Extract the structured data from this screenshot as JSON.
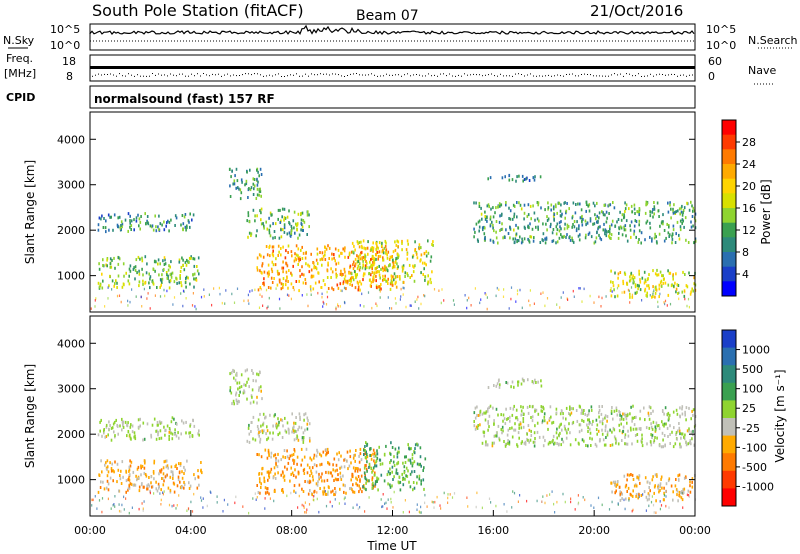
{
  "header": {
    "station": "South Pole Station (fitACF)",
    "beam": "Beam 07",
    "date": "21/Oct/2016"
  },
  "top_panels": {
    "nsky_label": "N.Sky",
    "nsky_ticks": [
      "10^5",
      "10^0"
    ],
    "nsearch_label": "N.Search",
    "nsearch_ticks": [
      "10^5",
      "10^0"
    ],
    "freq_label": "Freq.",
    "freq_unit": "[MHz]",
    "freq_ticks": [
      "18",
      "8"
    ],
    "nave_label": "Nave",
    "nave_ticks": [
      "60",
      "0"
    ],
    "cpid_label": "CPID",
    "cpid_text": "normalsound (fast) 157 RF"
  },
  "chart_data": [
    {
      "type": "heatmap",
      "name": "power",
      "ylabel": "Slant Range [km]",
      "xlabel": "",
      "ylim": [
        200,
        4600
      ],
      "xlim": [
        0,
        24
      ],
      "yticks": [
        "4000",
        "3000",
        "2000",
        "1000"
      ],
      "colorbar": {
        "label": "Power [dB]",
        "ticks": [
          "28",
          "24",
          "20",
          "16",
          "12",
          "8",
          "4"
        ],
        "colors": [
          "#ff0000",
          "#ff3a00",
          "#ff7a00",
          "#ffaa00",
          "#ffd400",
          "#d8e000",
          "#8fd430",
          "#3aa050",
          "#2d8a7a",
          "#2a6fb0",
          "#1a3fc8",
          "#0000ff"
        ]
      },
      "blobs": [
        {
          "t0": 0.3,
          "t1": 4.1,
          "r0": 2000,
          "r1": 2400,
          "level": 5
        },
        {
          "t0": 0.3,
          "t1": 4.3,
          "r0": 750,
          "r1": 1450,
          "level": 8
        },
        {
          "t0": 5.5,
          "t1": 6.8,
          "r0": 2700,
          "r1": 3400,
          "level": 6
        },
        {
          "t0": 6.2,
          "t1": 8.7,
          "r0": 1850,
          "r1": 2500,
          "level": 7
        },
        {
          "t0": 6.6,
          "t1": 12.2,
          "r0": 700,
          "r1": 1700,
          "level": 13
        },
        {
          "t0": 10.3,
          "t1": 13.6,
          "r0": 850,
          "r1": 1800,
          "level": 10
        },
        {
          "t0": 15.7,
          "t1": 17.9,
          "r0": 3100,
          "r1": 3250,
          "level": 4
        },
        {
          "t0": 15.2,
          "t1": 24.0,
          "r0": 1750,
          "r1": 2650,
          "level": 6
        },
        {
          "t0": 20.6,
          "t1": 24.0,
          "r0": 550,
          "r1": 1150,
          "level": 10
        }
      ]
    },
    {
      "type": "heatmap",
      "name": "velocity",
      "ylabel": "Slant Range [km]",
      "xlabel": "Time UT",
      "ylim": [
        200,
        4600
      ],
      "xlim": [
        0,
        24
      ],
      "yticks": [
        "4000",
        "3000",
        "2000",
        "1000"
      ],
      "xticks": [
        "00:00",
        "04:00",
        "08:00",
        "12:00",
        "16:00",
        "20:00",
        "00:00"
      ],
      "colorbar": {
        "label": "Velocity [m s⁻¹]",
        "ticks": [
          "1000",
          "500",
          "100",
          "25",
          "-25",
          "-100",
          "-500",
          "-1000"
        ],
        "colors": [
          "#1a3fc8",
          "#2a6fb0",
          "#2d8a7a",
          "#3aa050",
          "#8fd430",
          "#c0c0b8",
          "#ffaa00",
          "#ff7a00",
          "#ff3a00",
          "#ff0000"
        ]
      },
      "blobs": [
        {
          "t0": 0.3,
          "t1": 4.3,
          "r0": 1900,
          "r1": 2400,
          "vel": 0
        },
        {
          "t0": 0.3,
          "t1": 4.5,
          "r0": 750,
          "r1": 1450,
          "vel": -300
        },
        {
          "t0": 5.5,
          "t1": 6.8,
          "r0": 2700,
          "r1": 3450,
          "vel": 0
        },
        {
          "t0": 6.2,
          "t1": 8.7,
          "r0": 1850,
          "r1": 2500,
          "vel": 0
        },
        {
          "t0": 6.6,
          "t1": 11.3,
          "r0": 700,
          "r1": 1700,
          "vel": -400
        },
        {
          "t0": 10.8,
          "t1": 13.3,
          "r0": 800,
          "r1": 1850,
          "vel": 300
        },
        {
          "t0": 15.7,
          "t1": 17.9,
          "r0": 3050,
          "r1": 3250,
          "vel": 0
        },
        {
          "t0": 15.2,
          "t1": 24.0,
          "r0": 1750,
          "r1": 2650,
          "vel": 0
        },
        {
          "t0": 20.6,
          "t1": 24.0,
          "r0": 550,
          "r1": 1150,
          "vel": -300
        }
      ]
    }
  ]
}
